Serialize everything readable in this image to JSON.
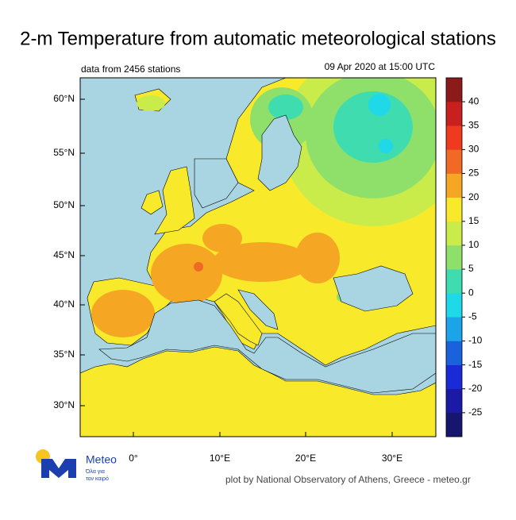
{
  "title": "2-m Temperature from automatic meteorological stations",
  "note_left": "data from 2456 stations",
  "note_right": "09 Apr 2020 at 15:00 UTC",
  "lat_labels": [
    "60°N",
    "55°N",
    "50°N",
    "45°N",
    "40°N",
    "35°N",
    "30°N"
  ],
  "lon_labels": [
    "0°",
    "10°E",
    "20°E",
    "30°E"
  ],
  "colorbar": {
    "range": [
      -30,
      45
    ],
    "ticks": [
      40,
      35,
      30,
      25,
      20,
      15,
      10,
      5,
      0,
      -5,
      -10,
      -15,
      -20,
      -25
    ],
    "colors": [
      "#16166e",
      "#1a1aa6",
      "#1a2ad6",
      "#1a62dc",
      "#1ca3e8",
      "#1fd8e8",
      "#3fdcb0",
      "#8fe06a",
      "#c9ec4a",
      "#f8ea2a",
      "#f5a623",
      "#f06a26",
      "#f03a1f",
      "#c8201e",
      "#8b1a1a"
    ]
  },
  "logo": {
    "name": "Meteo",
    "tagline": [
      "Όλα για",
      "τον καιρό"
    ]
  },
  "credit": "plot by National Observatory of Athens, Greece - meteo.gr"
}
